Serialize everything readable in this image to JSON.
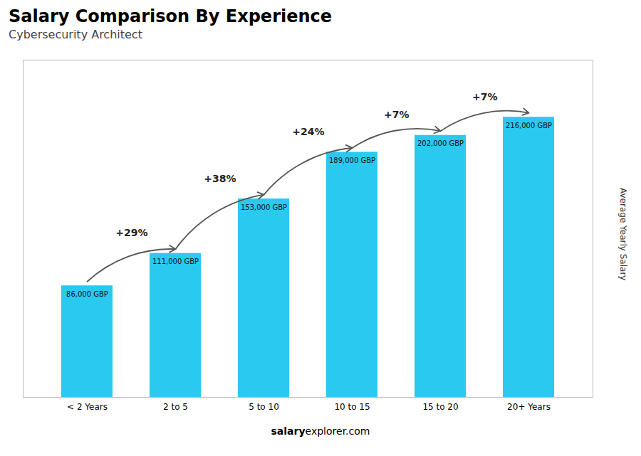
{
  "chart_data": {
    "type": "bar",
    "title": "Salary Comparison By Experience",
    "subtitle": "Cybersecurity Architect",
    "categories": [
      "< 2 Years",
      "2 to 5",
      "5 to 10",
      "10 to 15",
      "15 to 20",
      "20+ Years"
    ],
    "values": [
      86000,
      111000,
      153000,
      189000,
      202000,
      216000
    ],
    "value_labels": [
      "86,000 GBP",
      "111,000 GBP",
      "153,000 GBP",
      "189,000 GBP",
      "202,000 GBP",
      "216,000 GBP"
    ],
    "data_labels": true,
    "color": "#29c9f0",
    "ylabel": "Average Yearly Salary",
    "ylim": [
      0,
      260000
    ],
    "tick_labels": "x",
    "annotations": [
      {
        "text": "+29%",
        "from": "< 2 Years",
        "to": "2 to 5"
      },
      {
        "text": "+38%",
        "from": "2 to 5",
        "to": "5 to 10"
      },
      {
        "text": "+24%",
        "from": "5 to 10",
        "to": "10 to 15"
      },
      {
        "text": "+7%",
        "from": "10 to 15",
        "to": "15 to 20"
      },
      {
        "text": "+7%",
        "from": "15 to 20",
        "to": "20+ Years"
      }
    ],
    "footer": [
      {
        "text": "salary",
        "bold": true
      },
      {
        "text": "explorer.com"
      }
    ]
  }
}
